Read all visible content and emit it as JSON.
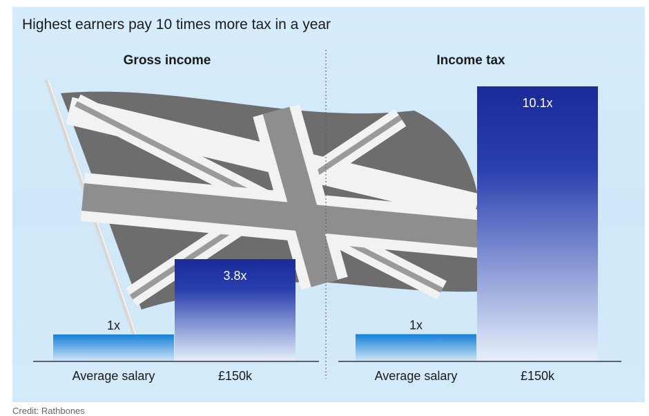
{
  "title": "Highest earners pay 10 times more tax in a year",
  "credit": "Credit: Rathbones",
  "colors": {
    "small_bar": "#1e88d8",
    "big_bar_top": "#1a2c9c",
    "big_bar_bottom": "#ffffff",
    "background": "#d4ebf9"
  },
  "chart_data": [
    {
      "type": "bar",
      "title": "Gross income",
      "categories": [
        "Average salary",
        "£150k"
      ],
      "values": [
        1,
        3.8
      ],
      "data_labels": [
        "1x",
        "3.8x"
      ],
      "ylim": [
        0,
        3.8
      ]
    },
    {
      "type": "bar",
      "title": "Income tax",
      "categories": [
        "Average salary",
        "£150k"
      ],
      "values": [
        1,
        10.1
      ],
      "data_labels": [
        "1x",
        "10.1x"
      ],
      "ylim": [
        0,
        10.1
      ]
    }
  ]
}
